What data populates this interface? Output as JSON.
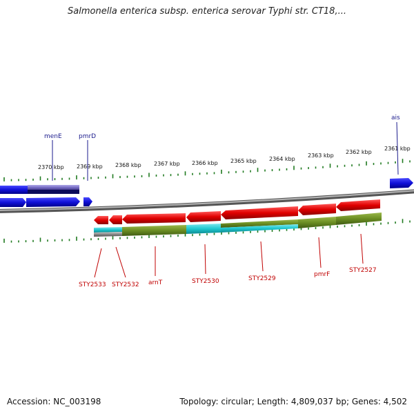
{
  "title": "Salmonella enterica subsp. enterica serovar Typhi str. CT18,...",
  "scale_labels": [
    "2370 kbp",
    "2369 kbp",
    "2368 kbp",
    "2367 kbp",
    "2366 kbp",
    "2365 kbp",
    "2364 kbp",
    "2363 kbp",
    "2362 kbp",
    "2361 kbp"
  ],
  "top_gene_labels": [
    "menE",
    "pmrD",
    "ais"
  ],
  "bottom_gene_labels": [
    "STY2533",
    "STY2532",
    "arnT",
    "STY2530",
    "STY2529",
    "pmrF",
    "STY2527"
  ],
  "footer": {
    "accession": "Accession: NC_003198",
    "summary": "Topology: circular; Length: 4,809,037 bp; Genes: 4,502"
  },
  "colors": {
    "forward_gene": "#1010e0",
    "reverse_gene": "#e01010",
    "backbone": "#8a8a8a",
    "cds_green": "#6b8e23",
    "cds_cyan": "#1ec8d0",
    "tick_green": "#1f7a1f"
  }
}
